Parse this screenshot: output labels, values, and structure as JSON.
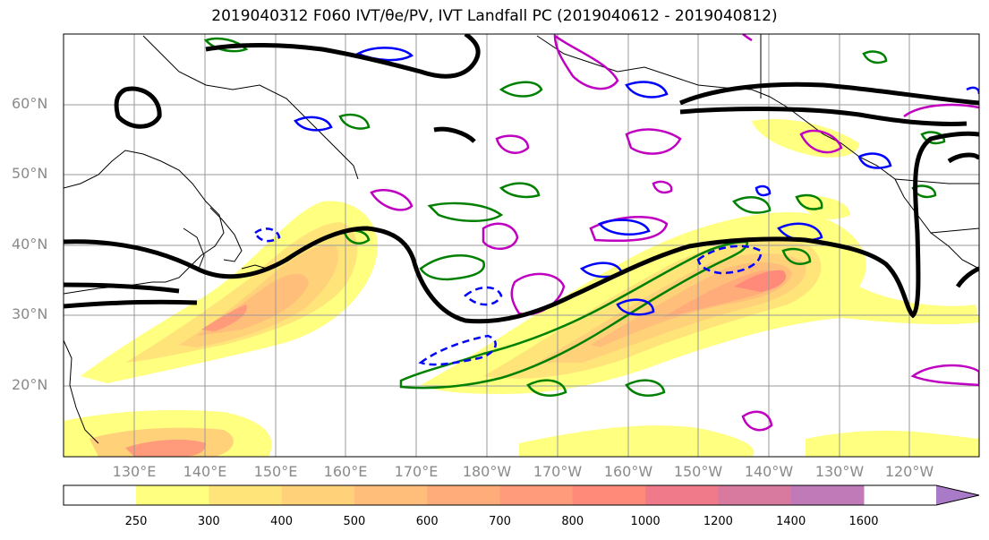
{
  "title": "2019040312 F060 IVT/θe/PV, IVT Landfall PC (2019040612 - 2019040812)",
  "lat_labels": [
    "60°N",
    "50°N",
    "40°N",
    "30°N",
    "20°N"
  ],
  "lon_labels": [
    "130°E",
    "140°E",
    "150°E",
    "160°E",
    "170°E",
    "180°W",
    "170°W",
    "160°W",
    "150°W",
    "140°W",
    "130°W",
    "120°W"
  ],
  "colorbar": {
    "levels": [
      "250",
      "300",
      "400",
      "500",
      "600",
      "700",
      "800",
      "1000",
      "1200",
      "1400",
      "1600"
    ],
    "colors": [
      "#ffff80",
      "#ffe47a",
      "#ffd27a",
      "#ffbf7a",
      "#ffac7a",
      "#ff9a7a",
      "#ff8a7a",
      "#f07a8a",
      "#d87aa0",
      "#c07ab8",
      "#a87ac8"
    ]
  },
  "contour_colors": {
    "pv": "#008000",
    "theta_e": "#0000ff",
    "landfall_pc": "#c000c0",
    "ivt_line": "#000000"
  }
}
